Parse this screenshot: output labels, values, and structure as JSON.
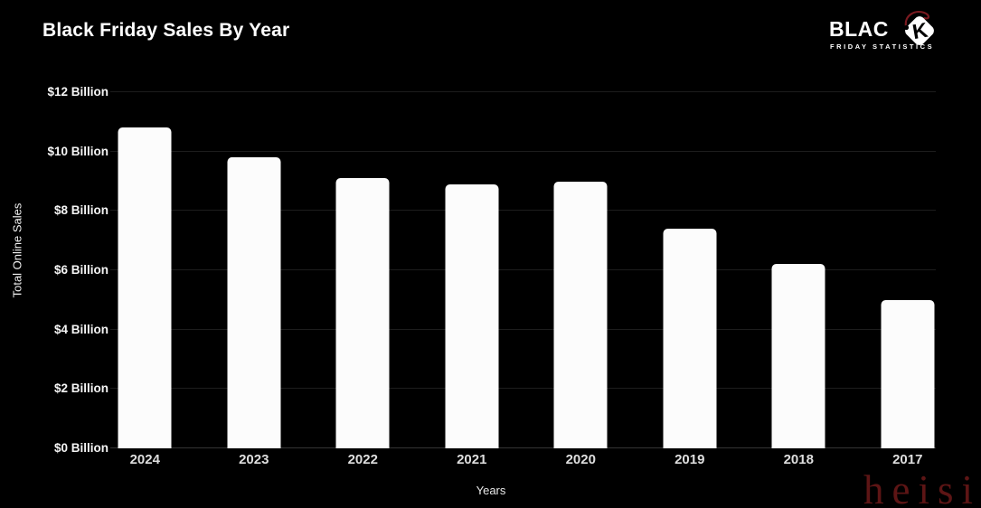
{
  "header": {
    "title": "Black Friday Sales By Year"
  },
  "logo": {
    "word": "BLAC",
    "k": "K",
    "subtitle": "FRIDAY STATISTICS",
    "tag_color": "#ffffff",
    "string_color": "#7a1a20"
  },
  "chart_data": {
    "type": "bar",
    "title": "Black Friday Sales By Year",
    "categories": [
      "2024",
      "2023",
      "2022",
      "2021",
      "2020",
      "2019",
      "2018",
      "2017"
    ],
    "values": [
      10.8,
      9.8,
      9.1,
      8.9,
      9.0,
      7.4,
      6.2,
      5.0
    ],
    "xlabel": "Years",
    "ylabel": "Total Online Sales",
    "ylim": [
      0,
      12
    ],
    "ytick_step": 2,
    "ytick_labels": [
      "$0 Billion",
      "$2 Billion",
      "$4 Billion",
      "$6 Billion",
      "$8 Billion",
      "$10 Billion",
      "$12 Billion"
    ],
    "grid": true,
    "legend": false,
    "bar_color": "#fcfcfc",
    "background": "#000000"
  },
  "watermark": {
    "text": "heisi",
    "color": "#621717"
  }
}
